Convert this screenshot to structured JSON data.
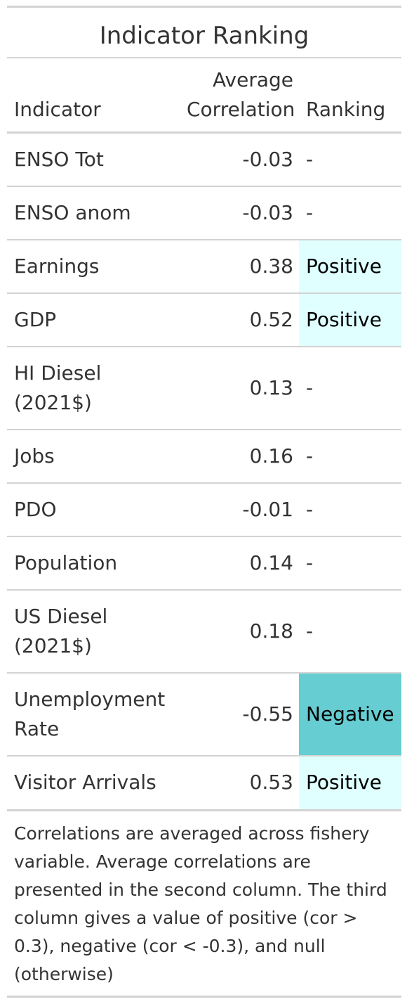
{
  "table": {
    "title": "Indicator Ranking",
    "headers": {
      "indicator": "Indicator",
      "correlation_line1": "Average",
      "correlation_line2": "Correlation",
      "ranking": "Ranking"
    },
    "rows": [
      {
        "indicator": "ENSO Tot",
        "correlation": "-0.03",
        "ranking": "-"
      },
      {
        "indicator": "ENSO anom",
        "correlation": "-0.03",
        "ranking": "-"
      },
      {
        "indicator": "Earnings",
        "correlation": "0.38",
        "ranking": "Positive"
      },
      {
        "indicator": "GDP",
        "correlation": "0.52",
        "ranking": "Positive"
      },
      {
        "indicator": "HI Diesel (2021$)",
        "correlation": "0.13",
        "ranking": "-"
      },
      {
        "indicator": "Jobs",
        "correlation": "0.16",
        "ranking": "-"
      },
      {
        "indicator": "PDO",
        "correlation": "-0.01",
        "ranking": "-"
      },
      {
        "indicator": "Population",
        "correlation": "0.14",
        "ranking": "-"
      },
      {
        "indicator": "US Diesel (2021$)",
        "correlation": "0.18",
        "ranking": "-"
      },
      {
        "indicator": "Unemployment Rate",
        "correlation": "-0.55",
        "ranking": "Negative"
      },
      {
        "indicator": "Visitor Arrivals",
        "correlation": "0.53",
        "ranking": "Positive"
      }
    ],
    "footnote": "Correlations are averaged across fishery variable. Average correlations are presented in the second column. The third column gives a value of positive (cor > 0.3), negative (cor < -0.3), and null (otherwise)"
  },
  "colors": {
    "positive_fill": "#e0ffff",
    "negative_fill": "#66cdd2",
    "rule": "#d3d3d3",
    "text": "#333333"
  }
}
